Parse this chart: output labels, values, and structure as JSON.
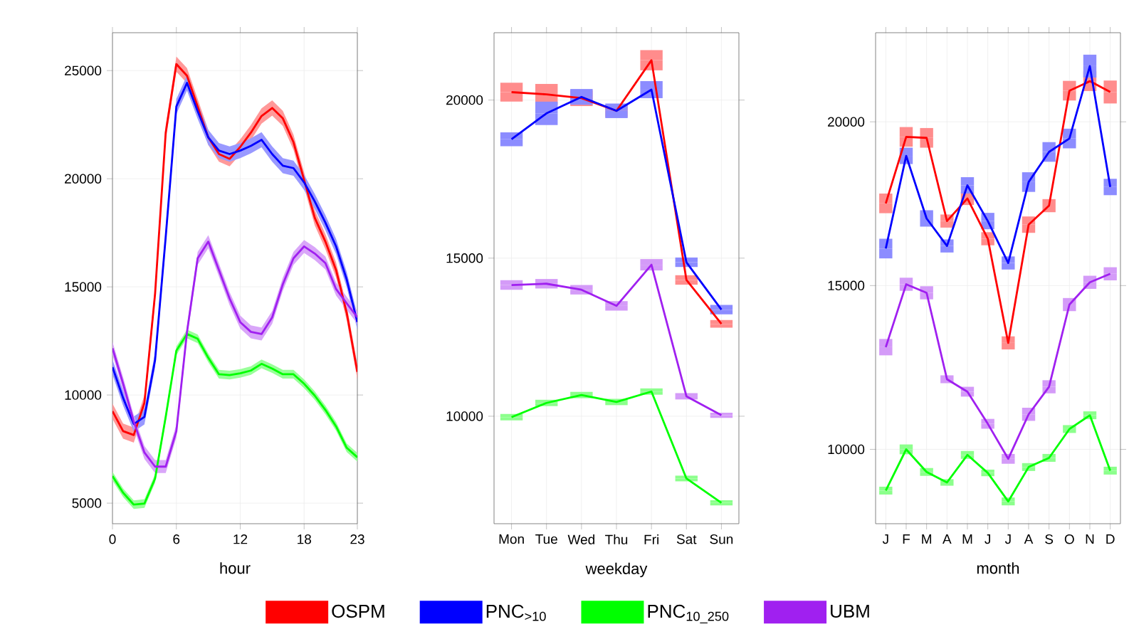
{
  "chart_data": [
    {
      "type": "line",
      "xlabel": "hour",
      "x": [
        0,
        1,
        2,
        3,
        4,
        5,
        6,
        7,
        8,
        9,
        10,
        11,
        12,
        13,
        14,
        15,
        16,
        17,
        18,
        19,
        20,
        21,
        22,
        23
      ],
      "xlim": [
        0,
        23
      ],
      "xticks": [
        0,
        6,
        12,
        18,
        23
      ],
      "ylim": [
        4050,
        26750
      ],
      "yticks": [
        5000,
        10000,
        15000,
        20000,
        25000
      ],
      "grid": true,
      "series": [
        {
          "color": "#ff0000",
          "values": [
            9250,
            8330,
            8150,
            9640,
            14680,
            22130,
            25300,
            24760,
            23340,
            21910,
            21140,
            20920,
            21470,
            22130,
            22900,
            23270,
            22790,
            21690,
            19940,
            18190,
            17090,
            15780,
            13800,
            11070
          ],
          "lower": [
            8900,
            7980,
            7800,
            9290,
            14330,
            21780,
            24950,
            24410,
            22990,
            21560,
            20790,
            20570,
            21120,
            21780,
            22550,
            22920,
            22440,
            21340,
            19590,
            17840,
            16740,
            15430,
            13450,
            10720
          ],
          "upper": [
            9600,
            8680,
            8500,
            9990,
            15030,
            22480,
            25650,
            25110,
            23690,
            22260,
            21490,
            21270,
            21820,
            22480,
            23250,
            23620,
            23140,
            22040,
            20290,
            18540,
            17440,
            16130,
            14150,
            11420
          ]
        },
        {
          "color": "#0000ff",
          "values": [
            11290,
            9860,
            8660,
            8990,
            11620,
            17310,
            23340,
            24430,
            23120,
            21910,
            21300,
            21140,
            21300,
            21520,
            21800,
            21140,
            20600,
            20490,
            19830,
            18950,
            17970,
            16870,
            15340,
            13370
          ],
          "lower": [
            10940,
            9510,
            8310,
            8640,
            11270,
            16960,
            22990,
            24080,
            22770,
            21560,
            20950,
            20790,
            20950,
            21170,
            21450,
            20790,
            20250,
            20140,
            19480,
            18600,
            17620,
            16520,
            14990,
            13020
          ],
          "upper": [
            11640,
            10210,
            9010,
            9340,
            11970,
            17660,
            23690,
            24780,
            23470,
            22260,
            21650,
            21490,
            21650,
            21870,
            22150,
            21490,
            20950,
            20840,
            20180,
            19300,
            18320,
            17220,
            15690,
            13720
          ]
        },
        {
          "color": "#00ff00",
          "values": [
            6250,
            5480,
            4930,
            4980,
            6140,
            8990,
            12050,
            12820,
            12600,
            11720,
            10960,
            10920,
            11000,
            11130,
            11440,
            11220,
            10960,
            10960,
            10520,
            9970,
            9310,
            8550,
            7560,
            7120
          ],
          "lower": [
            6050,
            5280,
            4730,
            4780,
            5940,
            8790,
            11850,
            12620,
            12400,
            11520,
            10760,
            10720,
            10800,
            10930,
            11240,
            11020,
            10760,
            10760,
            10320,
            9770,
            9110,
            8350,
            7360,
            6920
          ],
          "upper": [
            6450,
            5680,
            5130,
            5180,
            6340,
            9190,
            12250,
            13020,
            12800,
            11920,
            11160,
            11120,
            11200,
            11330,
            11640,
            11420,
            11160,
            11160,
            10720,
            10170,
            9510,
            8750,
            7760,
            7320
          ]
        },
        {
          "color": "#a020f0",
          "values": [
            12160,
            10520,
            8770,
            7340,
            6690,
            6690,
            8330,
            12920,
            16320,
            17090,
            15780,
            14460,
            13370,
            12920,
            12820,
            13590,
            15120,
            16320,
            16870,
            16540,
            16100,
            14900,
            14240,
            13590
          ],
          "lower": [
            11860,
            10220,
            8470,
            7040,
            6390,
            6390,
            8030,
            12620,
            16020,
            16790,
            15480,
            14160,
            13070,
            12620,
            12520,
            13290,
            14820,
            16020,
            16570,
            16240,
            15800,
            14600,
            13940,
            13290
          ],
          "upper": [
            12460,
            10820,
            9070,
            7640,
            6990,
            6990,
            8630,
            13220,
            16620,
            17390,
            16080,
            14760,
            13670,
            13220,
            13120,
            13890,
            15420,
            16620,
            17170,
            16840,
            16400,
            15200,
            14540,
            13890
          ]
        }
      ]
    },
    {
      "type": "line",
      "xlabel": "weekday",
      "categories": [
        "Mon",
        "Tue",
        "Wed",
        "Thu",
        "Fri",
        "Sat",
        "Sun"
      ],
      "ylim": [
        6600,
        22130
      ],
      "yticks": [
        10000,
        15000,
        20000
      ],
      "grid": true,
      "legend": "bottom",
      "series": [
        {
          "name": "OSPM",
          "color": "#ff0000",
          "values": [
            20250,
            20180,
            20060,
            19660,
            21260,
            14310,
            12920
          ],
          "errors": [
            300,
            330,
            250,
            200,
            320,
            150,
            120
          ]
        },
        {
          "name": "PNC$_{>10}$",
          "color": "#0000ff",
          "values": [
            18760,
            19580,
            20100,
            19660,
            20330,
            14870,
            13370
          ],
          "errors": [
            220,
            370,
            250,
            230,
            270,
            150,
            150
          ]
        },
        {
          "name": "PNC$_{10_250}$",
          "color": "#00ff00",
          "values": [
            9970,
            10420,
            10670,
            10450,
            10780,
            8030,
            7260
          ],
          "errors": [
            100,
            100,
            100,
            100,
            100,
            90,
            80
          ]
        },
        {
          "name": "UBM",
          "color": "#a020f0",
          "values": [
            14150,
            14190,
            14000,
            13490,
            14790,
            10630,
            10030
          ],
          "errors": [
            150,
            150,
            150,
            150,
            180,
            100,
            80
          ]
        }
      ]
    },
    {
      "type": "line",
      "xlabel": "month",
      "categories": [
        "J",
        "F",
        "M",
        "A",
        "M",
        "J",
        "J",
        "A",
        "S",
        "O",
        "N",
        "D"
      ],
      "ylim": [
        7730,
        22720
      ],
      "yticks": [
        10000,
        15000,
        20000
      ],
      "grid": true,
      "series": [
        {
          "color": "#ff0000",
          "values": [
            17510,
            19540,
            19510,
            16970,
            17660,
            16430,
            13250,
            16860,
            17440,
            20950,
            21240,
            20910
          ],
          "errors": [
            300,
            300,
            300,
            200,
            200,
            200,
            200,
            250,
            200,
            300,
            300,
            350
          ]
        },
        {
          "color": "#0000ff",
          "values": [
            16130,
            18960,
            17050,
            16210,
            18060,
            16970,
            15690,
            18160,
            19080,
            19490,
            21700,
            18010
          ],
          "errors": [
            300,
            250,
            250,
            200,
            250,
            250,
            200,
            300,
            300,
            300,
            350,
            250
          ]
        },
        {
          "color": "#00ff00",
          "values": [
            8740,
            10000,
            9310,
            8990,
            9830,
            9280,
            8410,
            9460,
            9740,
            10620,
            11040,
            9350
          ],
          "errors": [
            120,
            150,
            120,
            100,
            120,
            100,
            120,
            120,
            120,
            120,
            120,
            120
          ]
        },
        {
          "color": "#a020f0",
          "values": [
            13120,
            15040,
            14780,
            12140,
            11760,
            10780,
            9710,
            11070,
            11910,
            14420,
            15100,
            15360
          ],
          "errors": [
            250,
            200,
            200,
            120,
            150,
            150,
            150,
            200,
            200,
            200,
            200,
            200
          ]
        }
      ]
    }
  ]
}
